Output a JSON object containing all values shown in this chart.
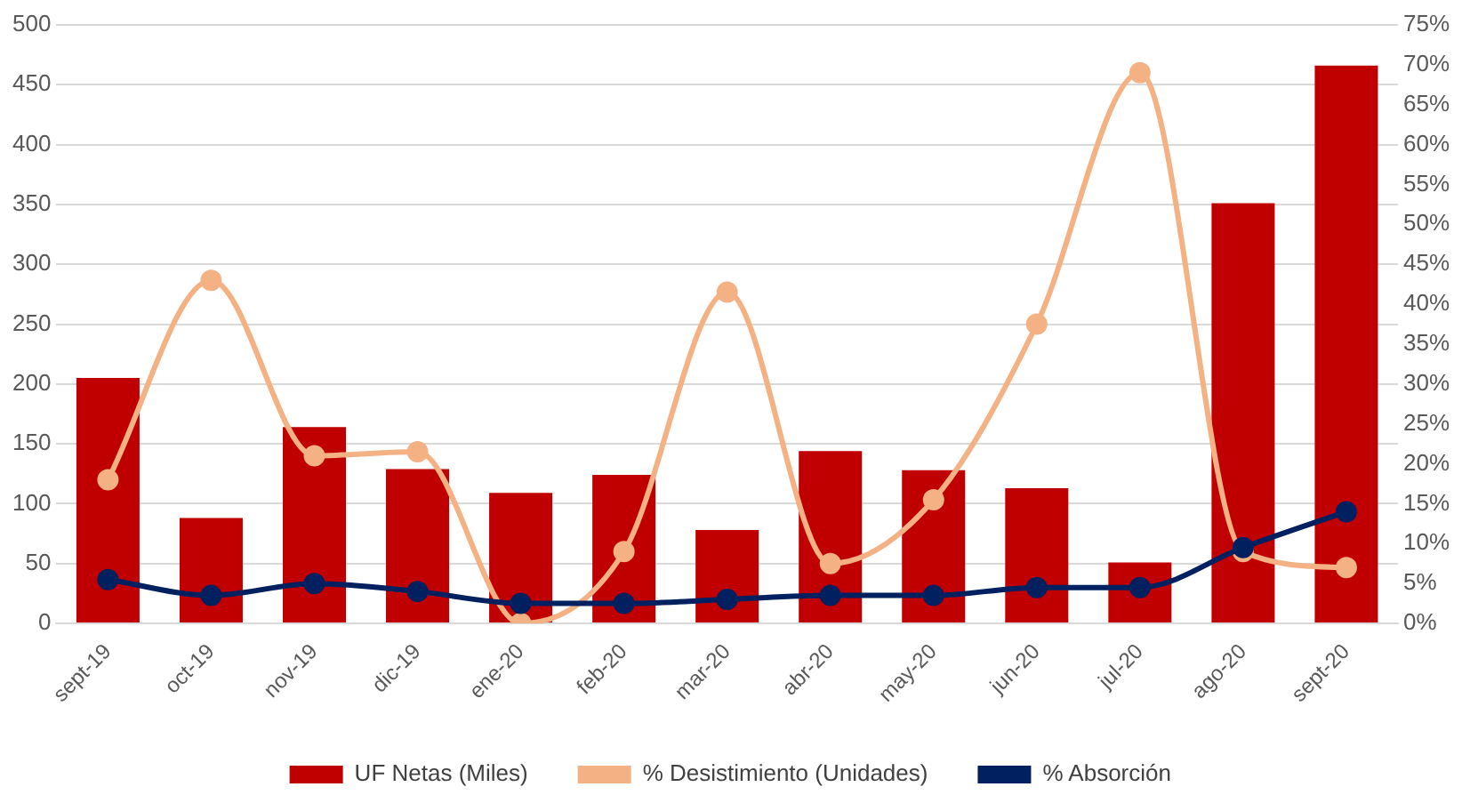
{
  "chart_data": {
    "type": "bar",
    "categories": [
      "sept-19",
      "oct-19",
      "nov-19",
      "dic-19",
      "ene-20",
      "feb-20",
      "mar-20",
      "abr-20",
      "may-20",
      "jun-20",
      "jul-20",
      "ago-20",
      "sept-20"
    ],
    "series": [
      {
        "name": "UF Netas (Miles)",
        "color": "#c00000",
        "values": [
          205,
          88,
          164,
          129,
          109,
          124,
          78,
          144,
          128,
          113,
          51,
          351,
          466
        ]
      },
      {
        "name": "% Desistimiento (Unidades)",
        "type": "line",
        "axis": "y2",
        "color": "#f4b183",
        "values": [
          18,
          43,
          21,
          21.5,
          0,
          9,
          41.5,
          7.5,
          15.5,
          37.5,
          69,
          9,
          7
        ]
      },
      {
        "name": "% Absorción",
        "type": "line",
        "axis": "y2",
        "color": "#002060",
        "values": [
          5.5,
          3.5,
          5,
          4,
          2.5,
          2.5,
          3,
          3.5,
          3.5,
          4.5,
          4.5,
          9.5,
          14
        ]
      }
    ],
    "ylim": [
      0,
      500
    ],
    "yticks": [
      0,
      50,
      100,
      150,
      200,
      250,
      300,
      350,
      400,
      450,
      500
    ],
    "y2lim": [
      0,
      75
    ],
    "y2ticks": [
      {
        "value": 0,
        "label": "0%"
      },
      {
        "value": 5,
        "label": "5%"
      },
      {
        "value": 10,
        "label": "10%"
      },
      {
        "value": 15,
        "label": "15%"
      },
      {
        "value": 20,
        "label": "20%"
      },
      {
        "value": 25,
        "label": "25%"
      },
      {
        "value": 30,
        "label": "30%"
      },
      {
        "value": 35,
        "label": "35%"
      },
      {
        "value": 40,
        "label": "40%"
      },
      {
        "value": 45,
        "label": "45%"
      },
      {
        "value": 50,
        "label": "50%"
      },
      {
        "value": 55,
        "label": "55%"
      },
      {
        "value": 60,
        "label": "60%"
      },
      {
        "value": 65,
        "label": "65%"
      },
      {
        "value": 70,
        "label": "70%"
      },
      {
        "value": 75,
        "label": "75%"
      }
    ],
    "grid": "y",
    "legend": "bottom",
    "marker": "circle"
  }
}
